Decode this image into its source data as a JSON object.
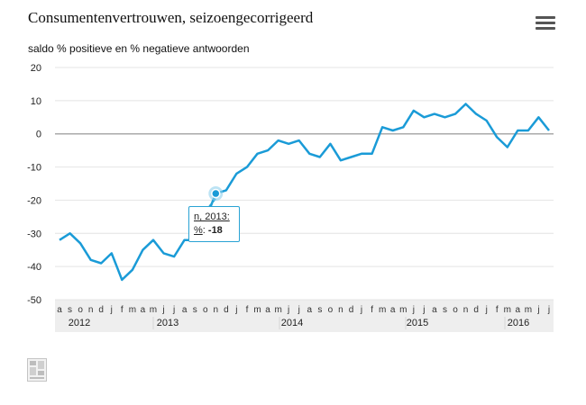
{
  "chart_data": {
    "type": "line",
    "title": "Consumentenvertrouwen, seizoengecorrigeerd",
    "ylabel": "saldo % positieve en % negatieve antwoorden",
    "ylim": [
      -50,
      20
    ],
    "yticks": [
      "20",
      "10",
      "0",
      "-10",
      "-20",
      "-30",
      "-40",
      "-50"
    ],
    "month_labels": [
      "a",
      "s",
      "o",
      "n",
      "d",
      "j",
      "f",
      "m",
      "a",
      "m",
      "j",
      "j",
      "a",
      "s",
      "o",
      "n",
      "d",
      "j",
      "f",
      "m",
      "a",
      "m",
      "j",
      "j",
      "a",
      "s",
      "o",
      "n",
      "d",
      "j",
      "f",
      "m",
      "a",
      "m",
      "j",
      "j",
      "a",
      "s",
      "o",
      "n",
      "d",
      "j",
      "f",
      "m",
      "a",
      "m",
      "j",
      "j"
    ],
    "year_labels": [
      "2012",
      "2013",
      "2014",
      "2015",
      "2016"
    ],
    "grid": true,
    "legend": "none",
    "color": "#1a9bd7",
    "series": [
      {
        "values": [
          -32,
          -30,
          -33,
          -38,
          -39,
          -36,
          -44,
          -41,
          -35,
          -32,
          -36,
          -37,
          -32,
          -32,
          -26,
          -18,
          -17,
          -12,
          -10,
          -6,
          -5,
          -2,
          -3,
          -2,
          -6,
          -7,
          -3,
          -8,
          -7,
          -6,
          -6,
          2,
          1,
          2,
          7,
          5,
          6,
          5,
          6,
          9,
          6,
          4,
          -1,
          -4,
          1,
          1,
          5,
          1
        ]
      }
    ],
    "highlight": {
      "label": "n, 2013:",
      "series_label": "%",
      "value": "-18"
    }
  },
  "menu": {
    "icon": "hamburger-menu-icon"
  },
  "logo": {
    "icon": "cbs-logo-icon"
  }
}
